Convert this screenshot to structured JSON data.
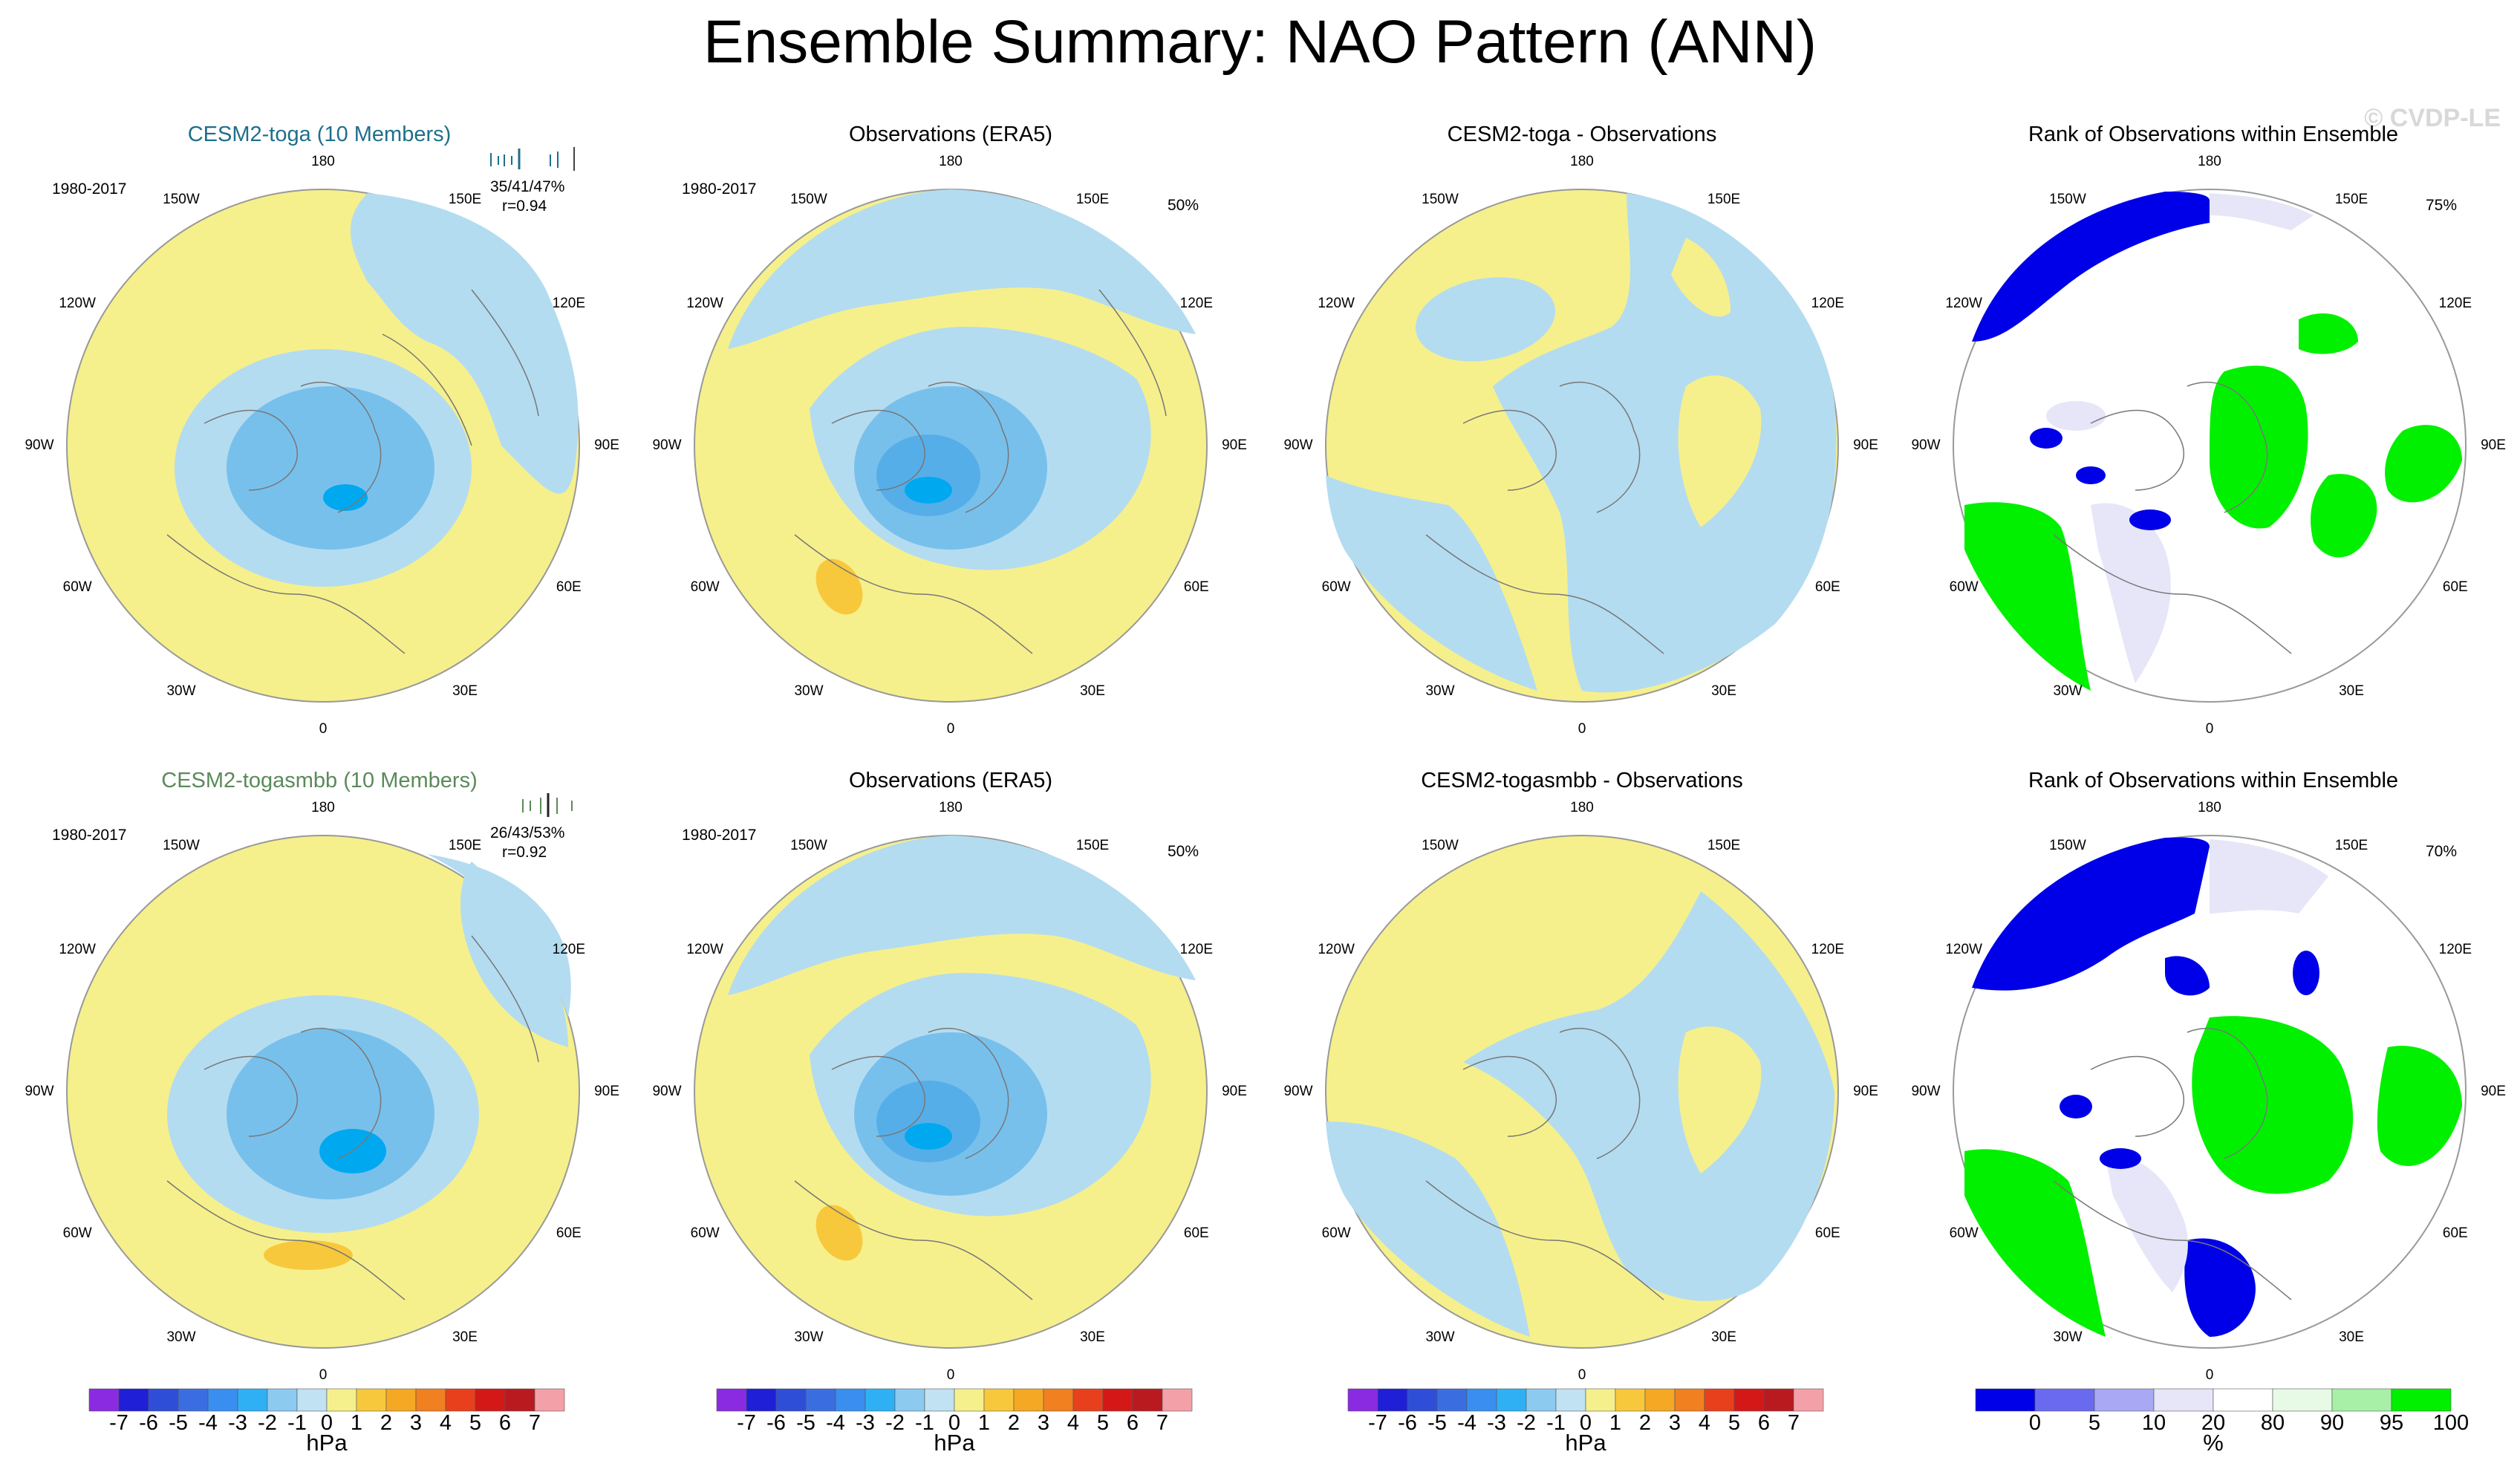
{
  "title": "Ensemble Summary: NAO Pattern (ANN)",
  "watermark": "© CVDP-LE",
  "labels": {
    "period": "1980-2017",
    "obs_title": "Observations (ERA5)",
    "rank_title": "Rank of Observations within Ensemble",
    "unit_hpa": "hPa",
    "unit_pct": "%"
  },
  "longitudes": [
    "180",
    "150E",
    "120E",
    "90E",
    "60E",
    "30E",
    "0",
    "30W",
    "60W",
    "90W",
    "120W",
    "150W"
  ],
  "colors": {
    "model1_title": "#1f6f8b",
    "model2_title": "#5a8a5a",
    "ocean_neutral": "#f6f08c",
    "neg1": "#b4dcf0",
    "neg2": "#78c0ec",
    "neg3": "#00a8f0",
    "pos1": "#f8c83c",
    "rank_low": "#0000e8",
    "rank_mid": "#e6e6f8",
    "rank_high": "#00f000"
  },
  "rows": [
    {
      "model_title": "CESM2-toga (10 Members)",
      "model_stats": "35/41/47%",
      "model_r": "r=0.94",
      "obs_pct": "50%",
      "diff_title": "CESM2-toga - Observations",
      "rank_pct": "75%"
    },
    {
      "model_title": "CESM2-togasmbb (10 Members)",
      "model_stats": "26/43/53%",
      "model_r": "r=0.92",
      "obs_pct": "50%",
      "diff_title": "CESM2-togasmbb - Observations",
      "rank_pct": "70%"
    }
  ],
  "chart_data": {
    "type": "map",
    "projection": "polar stereographic (north pole)",
    "variable": "NAO sea level pressure pattern",
    "colorbar_hpa": {
      "ticks": [
        "-7",
        "-6",
        "-5",
        "-4",
        "-3",
        "-2",
        "-1",
        "0",
        "1",
        "2",
        "3",
        "4",
        "5",
        "6",
        "7"
      ],
      "colors": [
        "#8a2be2",
        "#1f1fd8",
        "#2f4ed8",
        "#3a6ee0",
        "#3a8ef0",
        "#2fb0f5",
        "#8ccaf0",
        "#c0e2f2",
        "#f6f08c",
        "#f8c83c",
        "#f5a823",
        "#f08020",
        "#e8401c",
        "#d41818",
        "#b81a20",
        "#f4a0a8"
      ],
      "unit": "hPa"
    },
    "colorbar_rank": {
      "ticks": [
        "0",
        "5",
        "10",
        "20",
        "80",
        "90",
        "95",
        "100"
      ],
      "colors": [
        "#0000e8",
        "#6a6af0",
        "#a8a8f4",
        "#e6e6f8",
        "#ffffff",
        "#e6fae6",
        "#a8f0a8",
        "#00f000"
      ],
      "unit": "%"
    }
  }
}
